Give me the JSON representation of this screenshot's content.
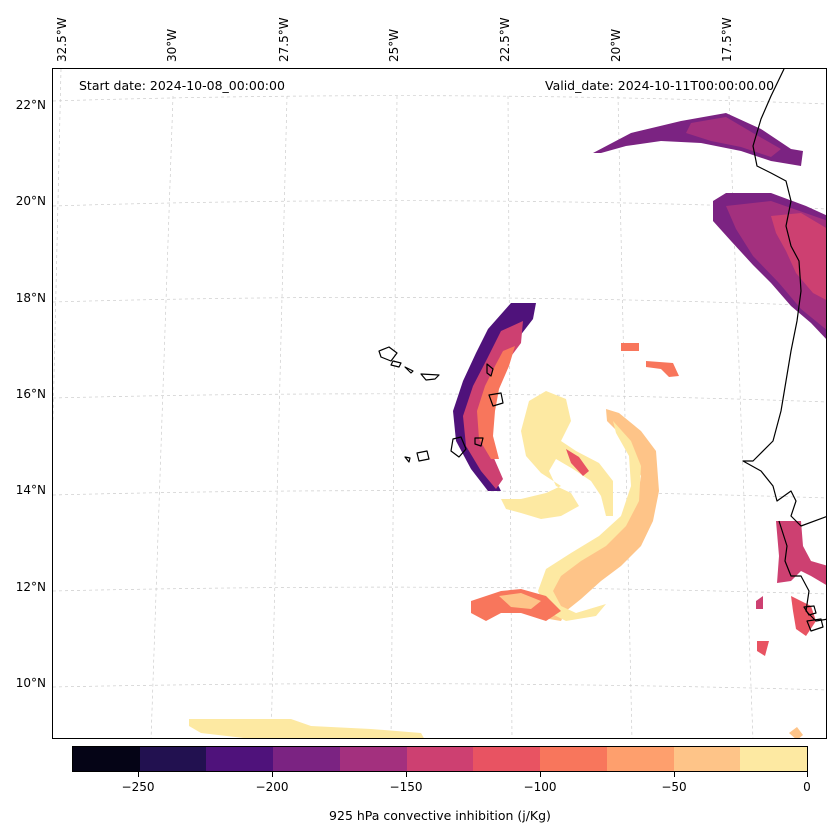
{
  "map": {
    "start_date": "Start date: 2024-10-08_00:00:00",
    "valid_date": "Valid_date: 2024-10-11T00:00:00.00",
    "longitude_labels": [
      "32.5°W",
      "30°W",
      "27.5°W",
      "25°W",
      "22.5°W",
      "20°W",
      "17.5°W"
    ],
    "latitude_labels": [
      "22°N",
      "20°N",
      "18°N",
      "16°N",
      "14°N",
      "12°N",
      "10°N"
    ],
    "coastline_color": "#000000",
    "gridline_color": "#cccccc"
  },
  "colorbar": {
    "title": "925 hPa convective inhibition (j/Kg)",
    "tick_labels": [
      "−250",
      "−200",
      "−150",
      "−100",
      "−50",
      "0"
    ],
    "bounds": [
      -275,
      -250,
      -225,
      -200,
      -175,
      -150,
      -125,
      -100,
      -75,
      -50,
      -25,
      0
    ],
    "colors": [
      "#050416",
      "#221150",
      "#4f127b",
      "#7b2382",
      "#a3307e",
      "#cd4071",
      "#e85362",
      "#f8765c",
      "#fe9f6d",
      "#fec488",
      "#fde9a2"
    ]
  }
}
